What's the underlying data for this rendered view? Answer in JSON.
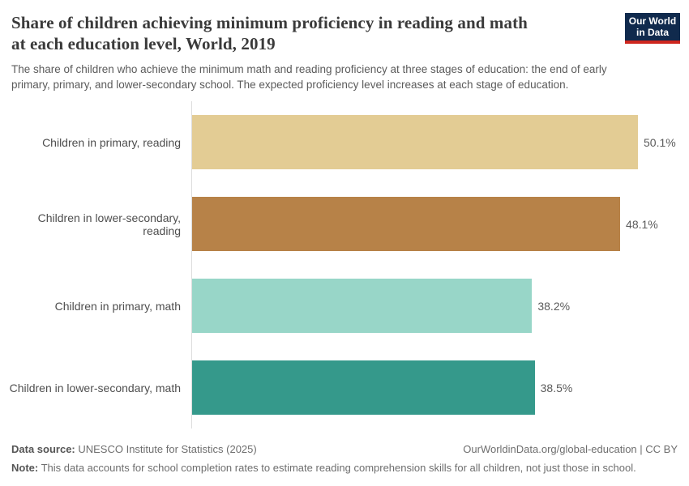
{
  "header": {
    "title_lines": [
      "Share of children achieving minimum proficiency in reading and math",
      "at each education level, World, 2019"
    ],
    "subtitle": "The share of children who achieve the minimum math and reading proficiency at three stages of education: the end of early primary, primary, and lower-secondary school. The expected proficiency level increases at each stage of education.",
    "logo": {
      "line1": "Our World",
      "line2": "in Data"
    }
  },
  "chart_data": {
    "type": "bar",
    "orientation": "horizontal",
    "title": "Share of children achieving minimum proficiency in reading and math at each education level, World, 2019",
    "unit": "%",
    "categories": [
      "Children in primary, reading",
      "Children in lower-secondary, reading",
      "Children in primary, math",
      "Children in lower-secondary, math"
    ],
    "values": [
      50.1,
      48.1,
      38.2,
      38.5
    ],
    "value_labels": [
      "50.1%",
      "48.1%",
      "38.2%",
      "38.5%"
    ],
    "bar_colors": [
      "#e3cc94",
      "#b78248",
      "#98d6c8",
      "#35998b"
    ],
    "xlim": [
      0,
      50.1
    ],
    "grid": "off",
    "legend": "none",
    "axis_line_color": "#dcdcdc"
  },
  "footer": {
    "datasource_label": "Data source:",
    "datasource_text": " UNESCO Institute for Statistics (2025)",
    "link_text": "OurWorldinData.org/global-education | CC BY",
    "note_label": "Note:",
    "note_text": " This data accounts for school completion rates to estimate reading comprehension skills for all children, not just those in school."
  },
  "colors": {
    "title": "#3a3a3a",
    "body_text": "#5b5b5b",
    "logo_bg": "#102a4d",
    "logo_accent": "#ce261e"
  }
}
